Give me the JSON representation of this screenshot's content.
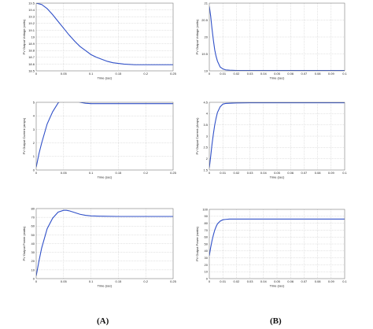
{
  "labels": {
    "left": "(A)",
    "right": "(B)"
  },
  "colors": {
    "line": "#3050c8",
    "grid": "#c8c8c8",
    "frame": "#7a7a7a"
  },
  "chart_data": [
    {
      "id": "A1",
      "type": "line",
      "xlabel": "Time (sec)",
      "ylabel": "PV Output Voltage (volts)",
      "xlim": [
        0,
        0.25
      ],
      "ylim": [
        18.5,
        19.5
      ],
      "xticks": [
        "0",
        "0.05",
        "0.1",
        "0.15",
        "0.2",
        "0.25"
      ],
      "yticks": [
        "19.5",
        "19.4",
        "19.3",
        "19.2",
        "19.1",
        "19",
        "18.9",
        "18.8",
        "18.7",
        "18.6",
        "18.5"
      ],
      "series": [
        {
          "x": [
            0,
            0.01,
            0.02,
            0.03,
            0.04,
            0.05,
            0.06,
            0.07,
            0.08,
            0.09,
            0.1,
            0.11,
            0.12,
            0.13,
            0.14,
            0.15,
            0.16,
            0.18,
            0.2,
            0.22,
            0.25
          ],
          "y": [
            19.5,
            19.48,
            19.42,
            19.33,
            19.23,
            19.13,
            19.03,
            18.94,
            18.86,
            18.8,
            18.74,
            18.7,
            18.67,
            18.64,
            18.62,
            18.61,
            18.6,
            18.59,
            18.59,
            18.59,
            18.59
          ]
        }
      ]
    },
    {
      "id": "A2",
      "type": "line",
      "xlabel": "Time (sec)",
      "ylabel": "PV Output Current (amps)",
      "xlim": [
        0,
        0.25
      ],
      "ylim": [
        0,
        5
      ],
      "xticks": [
        "0",
        "0.05",
        "0.1",
        "0.15",
        "0.2",
        "0.25"
      ],
      "yticks": [
        "5",
        "4",
        "3",
        "2",
        "1",
        "0"
      ],
      "series": [
        {
          "x": [
            0,
            0.005,
            0.01,
            0.02,
            0.03,
            0.04,
            0.05,
            0.055,
            0.06,
            0.07,
            0.08,
            0.09,
            0.1,
            0.12,
            0.15,
            0.2,
            0.25
          ],
          "y": [
            0.2,
            1.2,
            2.0,
            3.4,
            4.3,
            4.95,
            5.3,
            5.35,
            5.3,
            5.15,
            5.0,
            4.93,
            4.9,
            4.9,
            4.9,
            4.9,
            4.9
          ]
        }
      ]
    },
    {
      "id": "A3",
      "type": "line",
      "xlabel": "Time (sec)",
      "ylabel": "PV Output Power (watts)",
      "xlim": [
        0,
        0.25
      ],
      "ylim": [
        0,
        80
      ],
      "xticks": [
        "0",
        "0.05",
        "0.1",
        "0.15",
        "0.2",
        "0.25"
      ],
      "yticks": [
        "80",
        "70",
        "60",
        "50",
        "40",
        "30",
        "20",
        "10",
        "0"
      ],
      "series": [
        {
          "x": [
            0,
            0.005,
            0.01,
            0.02,
            0.03,
            0.04,
            0.05,
            0.055,
            0.06,
            0.07,
            0.08,
            0.09,
            0.1,
            0.12,
            0.15,
            0.2,
            0.25
          ],
          "y": [
            3,
            20,
            35,
            57,
            69,
            76,
            78,
            78,
            77.5,
            75.5,
            73.5,
            72.3,
            71.6,
            71.3,
            71,
            71,
            71
          ]
        }
      ]
    },
    {
      "id": "B1",
      "type": "line",
      "xlabel": "Time (sec)",
      "ylabel": "PV Output Voltage (volts)",
      "xlim": [
        0,
        0.1
      ],
      "ylim": [
        18.9,
        21
      ],
      "xticks": [
        "0",
        "0.01",
        "0.02",
        "0.03",
        "0.04",
        "0.05",
        "0.06",
        "0.07",
        "0.08",
        "0.09",
        "0.1"
      ],
      "yticks": [
        "21",
        "20.5",
        "20",
        "19.5",
        "19"
      ],
      "series": [
        {
          "x": [
            0,
            0.001,
            0.002,
            0.003,
            0.004,
            0.005,
            0.006,
            0.008,
            0.01,
            0.012,
            0.015,
            0.02,
            0.03,
            0.05,
            0.07,
            0.1
          ],
          "y": [
            20.9,
            20.6,
            20.2,
            19.85,
            19.55,
            19.35,
            19.2,
            19.02,
            18.96,
            18.93,
            18.92,
            18.91,
            18.91,
            18.91,
            18.91,
            18.91
          ]
        }
      ]
    },
    {
      "id": "B2",
      "type": "line",
      "xlabel": "Time (sec)",
      "ylabel": "PV Output Current (Amps)",
      "xlim": [
        0,
        0.1
      ],
      "ylim": [
        1.5,
        4.5
      ],
      "xticks": [
        "0",
        "0.01",
        "0.02",
        "0.03",
        "0.04",
        "0.05",
        "0.06",
        "0.07",
        "0.08",
        "0.09",
        "0.1"
      ],
      "yticks": [
        "4.5",
        "4",
        "3.5",
        "3",
        "2.5",
        "2",
        "1.5"
      ],
      "series": [
        {
          "x": [
            0,
            0.001,
            0.002,
            0.003,
            0.004,
            0.005,
            0.006,
            0.008,
            0.01,
            0.012,
            0.015,
            0.02,
            0.03,
            0.05,
            0.1
          ],
          "y": [
            1.6,
            2.1,
            2.65,
            3.1,
            3.5,
            3.8,
            4.05,
            4.3,
            4.42,
            4.45,
            4.46,
            4.47,
            4.48,
            4.48,
            4.48
          ]
        }
      ]
    },
    {
      "id": "B3",
      "type": "line",
      "xlabel": "Time (sec)",
      "ylabel": "PV Output Power (watts)",
      "xlim": [
        0,
        0.1
      ],
      "ylim": [
        0,
        100
      ],
      "xticks": [
        "0",
        "0.01",
        "0.02",
        "0.03",
        "0.04",
        "0.05",
        "0.06",
        "0.07",
        "0.08",
        "0.09",
        "0.1"
      ],
      "yticks": [
        "100",
        "90",
        "80",
        "70",
        "60",
        "50",
        "40",
        "30",
        "20",
        "10",
        "0"
      ],
      "series": [
        {
          "x": [
            0,
            0.001,
            0.002,
            0.003,
            0.004,
            0.005,
            0.006,
            0.008,
            0.01,
            0.012,
            0.015,
            0.02,
            0.03,
            0.05,
            0.1
          ],
          "y": [
            33,
            45,
            55,
            63,
            70,
            75,
            79,
            83,
            85,
            85.5,
            86,
            86,
            86,
            86,
            86
          ]
        }
      ]
    }
  ]
}
